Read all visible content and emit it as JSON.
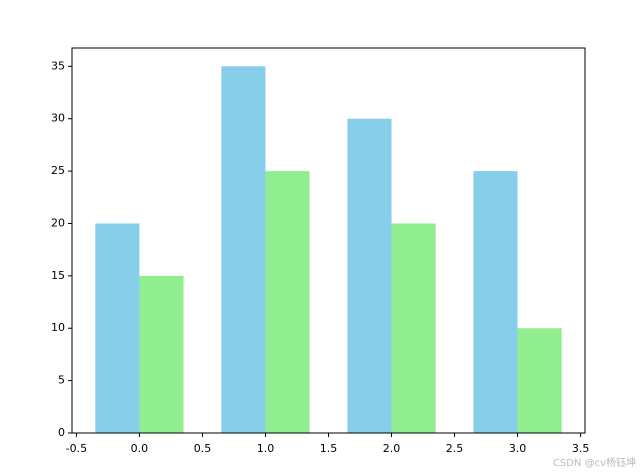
{
  "chart_data": {
    "type": "bar",
    "x": [
      0,
      1,
      2,
      3
    ],
    "series": [
      {
        "color": "#87ceeb",
        "values": [
          20,
          35,
          30,
          25
        ]
      },
      {
        "color": "#90ee90",
        "values": [
          15,
          25,
          20,
          10
        ]
      }
    ],
    "xlim": [
      -0.535,
      3.535
    ],
    "xticks": [
      -0.5,
      {
        "value": 0,
        "label": "0.0"
      },
      0.5,
      {
        "value": 1,
        "label": "1.0"
      },
      1.5,
      {
        "value": 2,
        "label": "2.0"
      },
      2.5,
      {
        "value": 3,
        "label": "3.0"
      },
      3.5
    ],
    "ylim": [
      0,
      36.75
    ],
    "yticks": [
      0,
      5,
      10,
      15,
      20,
      25,
      30,
      35
    ],
    "grid": false,
    "watermark": "CSDN @cv杨钰坤"
  }
}
